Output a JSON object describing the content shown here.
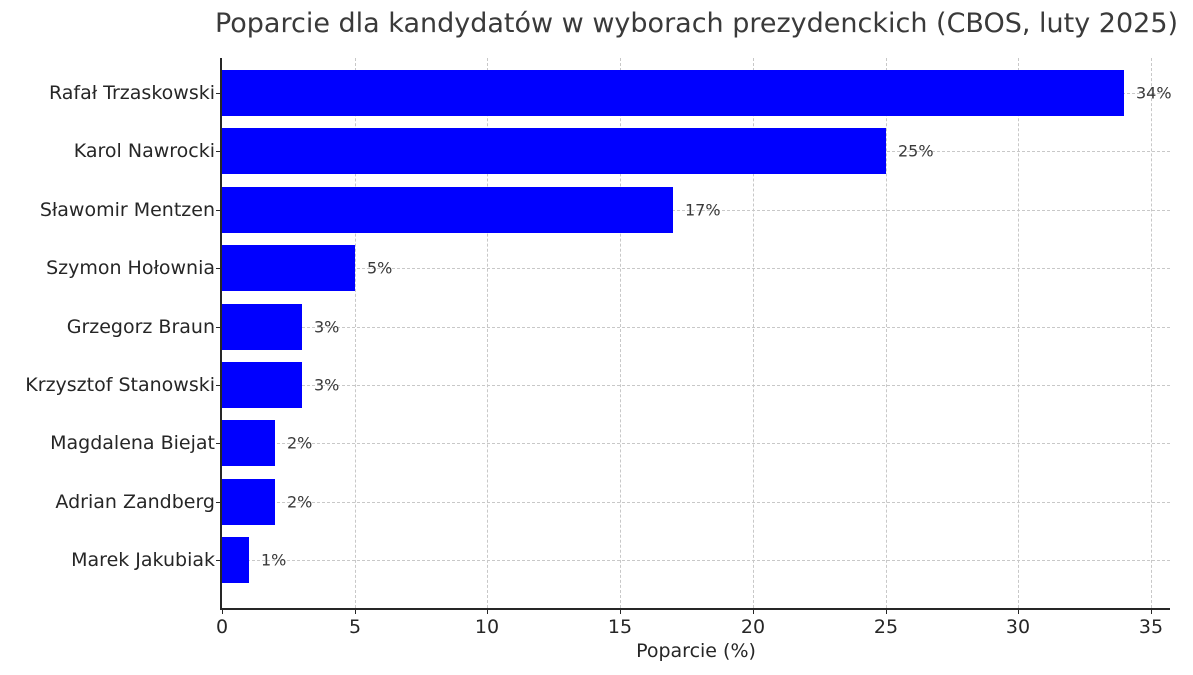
{
  "chart_data": {
    "type": "bar",
    "orientation": "horizontal",
    "title": "Poparcie dla kandydatów w wyborach prezydenckich (CBOS, luty 2025)",
    "xlabel": "Poparcie (%)",
    "ylabel": "",
    "xlim": [
      0,
      35.7
    ],
    "xticks": [
      0,
      5,
      10,
      15,
      20,
      25,
      30,
      35
    ],
    "grid": true,
    "legend": null,
    "bar_color": "#0000ff",
    "categories": [
      "Rafał Trzaskowski",
      "Karol Nawrocki",
      "Sławomir Mentzen",
      "Szymon Hołownia",
      "Grzegorz Braun",
      "Krzysztof Stanowski",
      "Magdalena Biejat",
      "Adrian Zandberg",
      "Marek Jakubiak"
    ],
    "values": [
      34,
      25,
      17,
      5,
      3,
      3,
      2,
      2,
      1
    ],
    "value_labels": [
      "34%",
      "25%",
      "17%",
      "5%",
      "3%",
      "3%",
      "2%",
      "2%",
      "1%"
    ]
  }
}
